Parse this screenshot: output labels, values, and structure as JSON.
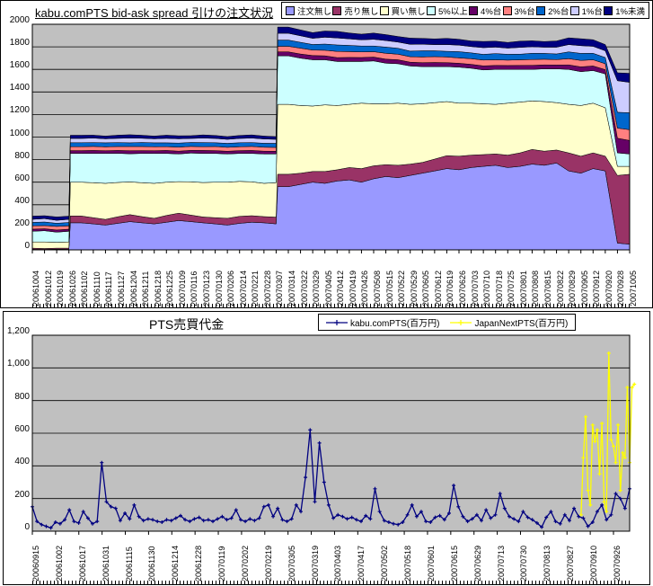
{
  "colors": {
    "plot_bg": "#C0C0C0",
    "grid": "#000000",
    "chart_border": "#000000"
  },
  "chart_data": [
    {
      "type": "area",
      "subtype": "stacked",
      "title": "kabu.comPTS bid-ask spread 引けの注文状況",
      "xlabel": "",
      "ylabel": "",
      "ylim": [
        0,
        2000
      ],
      "ytick_step": 200,
      "ytick_labels": [
        "2000",
        "1800",
        "1600",
        "1400",
        "1200",
        "1000",
        "800",
        "600",
        "400",
        "200",
        "0"
      ],
      "grid": "horizontal",
      "legend_position": "top-right",
      "x_labels": [
        "20061004",
        "20061012",
        "20061019",
        "20061026",
        "20061102",
        "20061110",
        "20061117",
        "20061127",
        "20061204",
        "20061211",
        "20061218",
        "20061225",
        "20070109",
        "20070116",
        "20070123",
        "20070130",
        "20070206",
        "20070214",
        "20070221",
        "20070228",
        "20070307",
        "20070314",
        "20070322",
        "20070329",
        "20070405",
        "20070412",
        "20070419",
        "20070426",
        "20070508",
        "20070515",
        "20070522",
        "20070529",
        "20070605",
        "20070612",
        "20070619",
        "20070626",
        "20070703",
        "20070710",
        "20070718",
        "20070725",
        "20070801",
        "20070808",
        "20070815",
        "20070822",
        "20070829",
        "20070905",
        "20070912",
        "20070920",
        "20070928",
        "20071005"
      ],
      "series": [
        {
          "name": "注文無し",
          "color": "#9999FF",
          "values": [
            5,
            4,
            6,
            5,
            240,
            230,
            220,
            235,
            250,
            240,
            230,
            245,
            260,
            250,
            240,
            230,
            220,
            235,
            245,
            240,
            230,
            560,
            580,
            600,
            590,
            610,
            620,
            600,
            630,
            650,
            640,
            660,
            680,
            700,
            720,
            710,
            730,
            740,
            750,
            730,
            740,
            760,
            750,
            770,
            700,
            680,
            720,
            700,
            60,
            50
          ]
        },
        {
          "name": "売り無し",
          "color": "#993366",
          "values": [
            10,
            8,
            9,
            10,
            60,
            55,
            50,
            58,
            62,
            55,
            50,
            60,
            65,
            58,
            52,
            55,
            60,
            62,
            58,
            55,
            60,
            110,
            100,
            95,
            105,
            100,
            110,
            120,
            115,
            105,
            110,
            100,
            95,
            105,
            115,
            120,
            110,
            105,
            100,
            110,
            120,
            130,
            125,
            115,
            160,
            150,
            140,
            130,
            600,
            620
          ]
        },
        {
          "name": "買い無し",
          "color": "#FFFFCC",
          "values": [
            55,
            58,
            52,
            55,
            300,
            310,
            320,
            305,
            290,
            300,
            310,
            295,
            280,
            295,
            305,
            315,
            320,
            310,
            300,
            295,
            305,
            620,
            600,
            580,
            590,
            570,
            560,
            580,
            550,
            540,
            550,
            530,
            520,
            500,
            480,
            470,
            460,
            450,
            440,
            460,
            450,
            430,
            440,
            420,
            430,
            450,
            440,
            430,
            80,
            70
          ]
        },
        {
          "name": "5%以上",
          "color": "#CCFFFF",
          "values": [
            95,
            100,
            90,
            95,
            255,
            260,
            265,
            258,
            250,
            260,
            265,
            255,
            245,
            255,
            258,
            255,
            250,
            248,
            252,
            260,
            255,
            430,
            420,
            410,
            400,
            390,
            380,
            370,
            380,
            360,
            350,
            340,
            330,
            320,
            310,
            320,
            310,
            300,
            310,
            300,
            290,
            280,
            290,
            300,
            310,
            300,
            290,
            300,
            120,
            110
          ]
        },
        {
          "name": "4%台",
          "color": "#660066",
          "values": [
            18,
            17,
            19,
            18,
            25,
            26,
            24,
            25,
            27,
            25,
            24,
            26,
            25,
            24,
            26,
            25,
            24,
            25,
            26,
            25,
            24,
            35,
            36,
            38,
            35,
            34,
            36,
            35,
            34,
            36,
            35,
            34,
            35,
            36,
            35,
            34,
            35,
            36,
            35,
            34,
            35,
            36,
            35,
            34,
            40,
            42,
            40,
            38,
            130,
            120
          ]
        },
        {
          "name": "3%台",
          "color": "#FF8080",
          "values": [
            30,
            28,
            32,
            30,
            35,
            36,
            34,
            35,
            37,
            36,
            35,
            34,
            36,
            35,
            34,
            36,
            35,
            34,
            36,
            35,
            34,
            50,
            52,
            48,
            50,
            55,
            52,
            50,
            48,
            52,
            50,
            48,
            50,
            52,
            50,
            48,
            50,
            52,
            50,
            48,
            50,
            52,
            50,
            48,
            55,
            58,
            55,
            52,
            90,
            95
          ]
        },
        {
          "name": "2%台",
          "color": "#0066CC",
          "values": [
            30,
            32,
            28,
            30,
            35,
            34,
            36,
            35,
            33,
            36,
            35,
            34,
            36,
            35,
            36,
            34,
            35,
            36,
            34,
            35,
            36,
            55,
            52,
            50,
            55,
            58,
            55,
            52,
            50,
            55,
            52,
            50,
            55,
            52,
            50,
            55,
            52,
            50,
            55,
            52,
            50,
            55,
            52,
            50,
            60,
            62,
            58,
            55,
            140,
            150
          ]
        },
        {
          "name": "1%台",
          "color": "#CCCCFF",
          "values": [
            28,
            30,
            26,
            28,
            38,
            40,
            36,
            38,
            42,
            38,
            36,
            40,
            38,
            36,
            40,
            38,
            36,
            38,
            40,
            38,
            36,
            60,
            58,
            55,
            60,
            62,
            58,
            55,
            60,
            58,
            55,
            60,
            58,
            55,
            60,
            58,
            55,
            60,
            58,
            55,
            60,
            58,
            55,
            60,
            65,
            68,
            62,
            60,
            280,
            270
          ]
        },
        {
          "name": "1%未満",
          "color": "#000080",
          "values": [
            28,
            26,
            30,
            28,
            28,
            26,
            24,
            28,
            30,
            26,
            24,
            28,
            26,
            24,
            28,
            26,
            24,
            26,
            28,
            26,
            24,
            55,
            52,
            50,
            55,
            58,
            52,
            50,
            55,
            52,
            50,
            55,
            52,
            50,
            55,
            52,
            50,
            55,
            52,
            50,
            55,
            52,
            50,
            55,
            60,
            62,
            58,
            55,
            70,
            80
          ]
        }
      ]
    },
    {
      "type": "line",
      "title": "PTS売買代金",
      "xlabel": "",
      "ylabel": "",
      "ylim": [
        0,
        1200
      ],
      "ytick_step": 200,
      "ytick_labels": [
        "1,200",
        "1,000",
        "800",
        "600",
        "400",
        "200",
        "0"
      ],
      "grid": "horizontal",
      "legend_position": "top-center",
      "x_count": 130,
      "x_labels": [
        "20060915",
        "20061002",
        "20061017",
        "20061031",
        "20061115",
        "20061130",
        "20061214",
        "20061228",
        "20070119",
        "20070202",
        "20070219",
        "20070305",
        "20070319",
        "20070403",
        "20070417",
        "20070502",
        "20070518",
        "20070601",
        "20070615",
        "20070629",
        "20070713",
        "20070730",
        "20070813",
        "20070827",
        "20070910",
        "20070926"
      ],
      "series": [
        {
          "name": "kabu.comPTS(百万円)",
          "color": "#000080",
          "marker": "cross",
          "start": 0,
          "step": 1,
          "values": [
            150,
            60,
            40,
            30,
            20,
            55,
            45,
            70,
            130,
            60,
            50,
            120,
            80,
            45,
            60,
            420,
            180,
            150,
            140,
            65,
            110,
            75,
            160,
            90,
            65,
            75,
            70,
            60,
            55,
            70,
            65,
            80,
            95,
            70,
            60,
            75,
            85,
            65,
            70,
            60,
            75,
            90,
            70,
            80,
            130,
            70,
            60,
            75,
            65,
            80,
            150,
            160,
            90,
            140,
            70,
            60,
            75,
            160,
            120,
            330,
            620,
            180,
            540,
            300,
            160,
            80,
            100,
            90,
            75,
            85,
            70,
            60,
            95,
            75,
            260,
            120,
            65,
            55,
            45,
            40,
            55,
            100,
            160,
            90,
            120,
            60,
            55,
            85,
            95,
            70,
            110,
            280,
            150,
            90,
            60,
            75,
            100,
            65,
            130,
            80,
            100,
            230,
            140,
            90,
            75,
            60,
            120,
            85,
            70,
            50,
            25,
            85,
            120,
            60,
            45,
            100,
            65,
            140,
            90,
            80,
            30,
            55,
            120,
            160,
            70,
            100,
            230,
            200,
            140,
            260
          ]
        },
        {
          "name": "JapanNextPTS(百万円)",
          "color": "#FFFF00",
          "marker": "cross",
          "start": 118.5,
          "step": 0.5,
          "values": [
            100,
            450,
            700,
            250,
            160,
            650,
            550,
            620,
            350,
            660,
            180,
            120,
            1090,
            560,
            520,
            420,
            650,
            250,
            480,
            450,
            880,
            420,
            880,
            900
          ]
        }
      ]
    }
  ]
}
